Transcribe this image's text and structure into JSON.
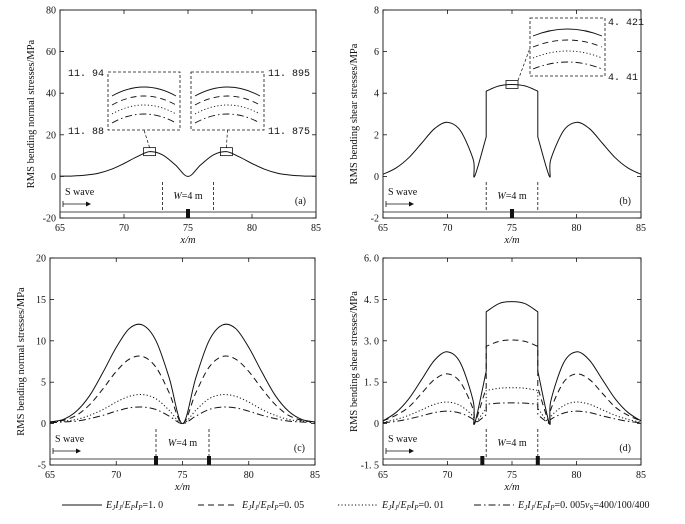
{
  "legend": {
    "items": [
      {
        "label": "E_J I_J / E_P I_P = 1.0",
        "pre": "E",
        "s1": "J",
        "m1": "I",
        "s2": "J",
        "slash": "/",
        "m2": "E",
        "s3": "P",
        "m3": "I",
        "s4": "P",
        "val": "=1. 0",
        "style": "solid"
      },
      {
        "label": "E_J I_J / E_P I_P = 0.05",
        "pre": "E",
        "s1": "J",
        "m1": "I",
        "s2": "J",
        "slash": "/",
        "m2": "E",
        "s3": "P",
        "m3": "I",
        "s4": "P",
        "val": "=0. 05",
        "style": "dashed"
      },
      {
        "label": "E_J I_J / E_P I_P = 0.01",
        "pre": "E",
        "s1": "J",
        "m1": "I",
        "s2": "J",
        "slash": "/",
        "m2": "E",
        "s3": "P",
        "m3": "I",
        "s4": "P",
        "val": "=0. 01",
        "style": "dotted"
      },
      {
        "label": "E_J I_J / E_P I_P = 0.005",
        "pre": "E",
        "s1": "J",
        "m1": "I",
        "s2": "J",
        "slash": "/",
        "m2": "E",
        "s3": "P",
        "m3": "I",
        "s4": "P",
        "val": "=0. 005",
        "style": "dashdot"
      }
    ],
    "vs_prefix": "v",
    "vs_sub": "S",
    "vs_value": "=400/100/400"
  },
  "chart_data": [
    {
      "id": "a",
      "type": "line",
      "panel_label": "(a)",
      "xlabel": "x/m",
      "ylabel": "RMS bending normal stresses/MPa",
      "xlim": [
        65,
        85
      ],
      "ylim": [
        -20,
        80
      ],
      "xticks": [
        65,
        70,
        75,
        80,
        85
      ],
      "yticks": [
        -20,
        0,
        20,
        40,
        60,
        80
      ],
      "ann": {
        "wave": "S wave",
        "width": "W=4 m",
        "joints": [
          73,
          77
        ],
        "joint_marks": [
          75
        ]
      },
      "series": [
        {
          "style": "solid",
          "x": [
            65,
            66,
            67,
            68,
            69,
            70,
            71,
            72,
            73,
            74,
            75,
            76,
            77,
            78,
            79,
            80,
            81,
            82,
            83,
            84,
            85
          ],
          "y": [
            0.1,
            0.2,
            0.6,
            1.5,
            3.4,
            6.2,
            9.4,
            11.9,
            10.4,
            5.6,
            0,
            5.6,
            10.4,
            11.9,
            9.4,
            6.2,
            3.4,
            1.5,
            0.6,
            0.2,
            0.1
          ]
        }
      ],
      "insets": [
        {
          "values": [
            "11. 94",
            "11. 88"
          ]
        },
        {
          "values": [
            "11. 895",
            "11. 875"
          ]
        }
      ]
    },
    {
      "id": "b",
      "type": "line",
      "panel_label": "(b)",
      "xlabel": "x/m",
      "ylabel": "RMS bending shear stresses/MPa",
      "xlim": [
        65,
        85
      ],
      "ylim": [
        -2,
        8
      ],
      "xticks": [
        65,
        70,
        75,
        80,
        85
      ],
      "yticks": [
        -2,
        0,
        2,
        4,
        6,
        8
      ],
      "ann": {
        "wave": "S wave",
        "width": "W=4 m",
        "joints": [
          73,
          77
        ],
        "joint_marks": [
          75
        ]
      },
      "series": [
        {
          "style": "solid",
          "x": [
            65,
            66,
            67,
            68,
            69,
            70,
            71,
            72,
            72.1,
            73,
            73,
            74,
            75,
            76,
            77,
            77,
            77.9,
            78,
            79,
            80,
            81,
            82,
            83,
            84,
            85
          ],
          "y": [
            0.1,
            0.4,
            0.9,
            1.6,
            2.3,
            2.6,
            2.2,
            0.8,
            0.0,
            1.9,
            4.1,
            4.35,
            4.42,
            4.35,
            4.1,
            1.9,
            0.0,
            0.8,
            2.2,
            2.6,
            2.3,
            1.6,
            0.9,
            0.4,
            0.1
          ]
        }
      ],
      "insets": [
        {
          "values": [
            "4. 421",
            "4. 41"
          ]
        }
      ]
    },
    {
      "id": "c",
      "type": "line",
      "panel_label": "(c)",
      "xlabel": "x/m",
      "ylabel": "RMS bending normal stresses/MPa",
      "xlim": [
        65,
        85
      ],
      "ylim": [
        -5,
        20
      ],
      "xticks": [
        65,
        70,
        75,
        80,
        85
      ],
      "yticks": [
        -5,
        0,
        5,
        10,
        15,
        20
      ],
      "ann": {
        "wave": "S wave",
        "width": "W=4 m",
        "joints": [
          73,
          77
        ],
        "joint_marks": [
          73,
          77
        ]
      },
      "series": [
        {
          "style": "solid",
          "x": [
            65,
            66,
            67,
            68,
            69,
            70,
            71,
            72,
            73,
            74,
            75,
            76,
            77,
            78,
            79,
            80,
            81,
            82,
            83,
            84,
            85
          ],
          "y": [
            0.2,
            0.5,
            1.5,
            3.4,
            6.2,
            9.2,
            11.5,
            11.9,
            10.0,
            5.5,
            0,
            5.5,
            10.0,
            11.9,
            11.5,
            9.2,
            6.2,
            3.4,
            1.5,
            0.5,
            0.2
          ]
        },
        {
          "style": "dashed",
          "x": [
            65,
            66,
            67,
            68,
            69,
            70,
            71,
            72,
            73,
            74,
            75,
            76,
            77,
            78,
            79,
            80,
            81,
            82,
            83,
            84,
            85
          ],
          "y": [
            0.2,
            0.4,
            1.0,
            2.3,
            4.2,
            6.3,
            7.8,
            8.1,
            6.8,
            3.7,
            0,
            3.7,
            6.8,
            8.1,
            7.8,
            6.3,
            4.2,
            2.3,
            1.0,
            0.4,
            0.2
          ]
        },
        {
          "style": "dotted",
          "x": [
            65,
            66,
            67,
            68,
            69,
            70,
            71,
            72,
            73,
            74,
            75,
            76,
            77,
            78,
            79,
            80,
            81,
            82,
            83,
            84,
            85
          ],
          "y": [
            0.2,
            0.3,
            0.5,
            1.0,
            1.7,
            2.6,
            3.3,
            3.5,
            3.0,
            1.6,
            0,
            1.6,
            3.0,
            3.5,
            3.3,
            2.6,
            1.7,
            1.0,
            0.5,
            0.3,
            0.2
          ]
        },
        {
          "style": "dashdot",
          "x": [
            65,
            66,
            67,
            68,
            69,
            70,
            71,
            72,
            73,
            74,
            75,
            76,
            77,
            78,
            79,
            80,
            81,
            82,
            83,
            84,
            85
          ],
          "y": [
            0.1,
            0.2,
            0.3,
            0.6,
            1.0,
            1.5,
            1.9,
            2.0,
            1.7,
            0.9,
            0,
            0.9,
            1.7,
            2.0,
            1.9,
            1.5,
            1.0,
            0.6,
            0.3,
            0.2,
            0.1
          ]
        }
      ]
    },
    {
      "id": "d",
      "type": "line",
      "panel_label": "(d)",
      "xlabel": "x/m",
      "ylabel": "RMS bending shear stresses/MPa",
      "xlim": [
        65,
        85
      ],
      "ylim": [
        -1.5,
        6
      ],
      "xticks": [
        65,
        70,
        75,
        80,
        85
      ],
      "yticks": [
        "-1. 5",
        "0",
        "1. 5",
        "3. 0",
        "4. 5",
        "6. 0"
      ],
      "yticks_val": [
        -1.5,
        0,
        1.5,
        3.0,
        4.5,
        6.0
      ],
      "ann": {
        "wave": "S wave",
        "width": "W=4 m",
        "joints": [
          73,
          77
        ],
        "joint_marks": [
          72.7,
          77
        ]
      },
      "series": [
        {
          "style": "solid",
          "x": [
            65,
            66,
            67,
            68,
            69,
            70,
            71,
            72,
            72.1,
            73,
            73,
            74,
            75,
            76,
            77,
            77,
            77.9,
            78,
            79,
            80,
            81,
            82,
            83,
            84,
            85
          ],
          "y": [
            0.1,
            0.4,
            0.9,
            1.6,
            2.3,
            2.6,
            2.2,
            0.8,
            0.0,
            1.9,
            4.05,
            4.35,
            4.42,
            4.35,
            4.05,
            1.9,
            0.0,
            0.8,
            2.2,
            2.6,
            2.3,
            1.6,
            0.9,
            0.4,
            0.1
          ]
        },
        {
          "style": "dashed",
          "x": [
            65,
            66,
            67,
            68,
            69,
            70,
            71,
            72,
            72.1,
            73,
            73,
            74,
            75,
            76,
            77,
            77,
            77.9,
            78,
            79,
            80,
            81,
            82,
            83,
            84,
            85
          ],
          "y": [
            0.1,
            0.3,
            0.6,
            1.1,
            1.6,
            1.8,
            1.5,
            0.5,
            0.0,
            1.3,
            2.8,
            2.98,
            3.03,
            2.98,
            2.8,
            1.3,
            0.0,
            0.5,
            1.5,
            1.8,
            1.6,
            1.1,
            0.6,
            0.3,
            0.1
          ]
        },
        {
          "style": "dotted",
          "x": [
            65,
            66,
            67,
            68,
            69,
            70,
            71,
            72,
            72.1,
            73,
            73,
            74,
            75,
            76,
            77,
            77,
            77.9,
            78,
            79,
            80,
            81,
            82,
            83,
            84,
            85
          ],
          "y": [
            0.05,
            0.15,
            0.3,
            0.5,
            0.7,
            0.78,
            0.65,
            0.25,
            0.0,
            0.55,
            1.2,
            1.28,
            1.3,
            1.28,
            1.2,
            0.55,
            0.0,
            0.25,
            0.65,
            0.78,
            0.7,
            0.5,
            0.3,
            0.15,
            0.05
          ]
        },
        {
          "style": "dashdot",
          "x": [
            65,
            66,
            67,
            68,
            69,
            70,
            71,
            72,
            72.1,
            73,
            73,
            74,
            75,
            76,
            77,
            77,
            77.9,
            78,
            79,
            80,
            81,
            82,
            83,
            84,
            85
          ],
          "y": [
            0.03,
            0.08,
            0.17,
            0.28,
            0.4,
            0.45,
            0.38,
            0.15,
            0.0,
            0.32,
            0.7,
            0.74,
            0.75,
            0.74,
            0.7,
            0.32,
            0.0,
            0.15,
            0.38,
            0.45,
            0.4,
            0.28,
            0.17,
            0.08,
            0.03
          ]
        }
      ]
    }
  ]
}
